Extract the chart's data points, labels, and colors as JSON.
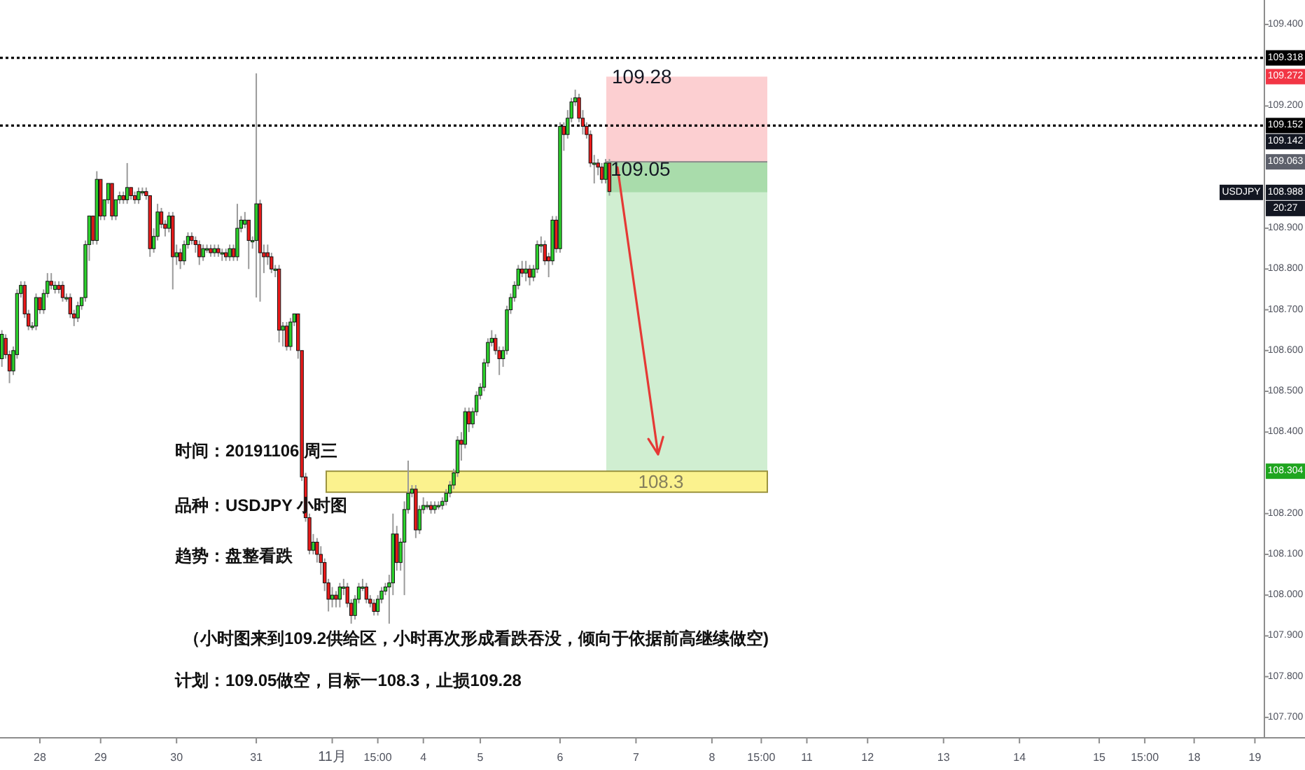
{
  "chart_data": {
    "type": "candlestick",
    "categories": [
      null,
      null,
      null,
      null,
      null,
      null,
      null,
      null,
      null,
      null,
      "28",
      null,
      null,
      null,
      null,
      null,
      null,
      null,
      null,
      null,
      null,
      null,
      null,
      null,
      null,
      null,
      "29",
      null,
      null,
      null,
      null,
      null,
      null,
      null,
      null,
      null,
      null,
      null,
      null,
      null,
      null,
      null,
      null,
      null,
      null,
      null,
      "30",
      null,
      null,
      null,
      null,
      null,
      null,
      null,
      null,
      null,
      null,
      null,
      null,
      null,
      null,
      null,
      null,
      null,
      null,
      null,
      null,
      "31",
      null,
      null,
      null,
      null,
      null,
      null,
      null,
      null,
      null,
      null,
      null,
      null,
      null,
      null,
      null,
      null,
      null,
      null,
      null,
      "11月",
      null,
      null,
      null,
      null,
      null,
      null,
      null,
      null,
      null,
      null,
      null,
      "15:00",
      null,
      null,
      null,
      null,
      null,
      null,
      null,
      null,
      null,
      null,
      null,
      "4",
      null,
      null,
      null,
      null,
      null,
      null,
      null,
      null,
      null,
      null,
      null,
      null,
      null,
      null,
      "5",
      null,
      null,
      null,
      null,
      null,
      null,
      null,
      null,
      null,
      null,
      null,
      null,
      null,
      null,
      null,
      null,
      null,
      null,
      null,
      null,
      "6",
      null,
      null,
      null,
      null,
      null,
      null,
      null,
      null,
      null,
      null,
      null,
      null,
      null,
      null,
      null,
      null,
      null,
      null,
      null,
      "7",
      null,
      null,
      null,
      null,
      null,
      null,
      null,
      null,
      null,
      null,
      null,
      null,
      null,
      null,
      null,
      null,
      null,
      null,
      null,
      "8",
      null,
      null,
      null,
      null,
      null,
      null,
      null,
      null,
      null,
      null,
      null,
      null,
      "15:00",
      null,
      null,
      null,
      null,
      null,
      null,
      null,
      null,
      null,
      null,
      null,
      "11",
      null,
      null,
      null,
      null,
      null,
      null,
      null,
      null,
      null,
      null,
      null,
      null,
      null,
      null,
      null,
      "12",
      null,
      null,
      null,
      null,
      null,
      null,
      null,
      null,
      null,
      null,
      null,
      null,
      null,
      null,
      null,
      null,
      null,
      null,
      null,
      "13",
      null,
      null,
      null,
      null,
      null,
      null,
      null,
      null,
      null,
      null,
      null,
      null,
      null,
      null,
      null,
      null,
      null,
      null,
      null,
      "14",
      null,
      null,
      null,
      null,
      null,
      null,
      null,
      null,
      null,
      null,
      null,
      null,
      null,
      null,
      null,
      null,
      null,
      null,
      null,
      null,
      "15",
      null,
      null,
      null,
      null,
      null,
      null,
      null,
      null,
      null,
      null,
      null,
      "15:00",
      null,
      null,
      null,
      null,
      null,
      null,
      null,
      null,
      null,
      null,
      null,
      null,
      "18",
      null,
      null,
      null,
      null,
      null,
      null,
      null,
      null,
      null,
      null,
      null,
      null,
      null,
      null,
      null,
      "19",
      null,
      null
    ],
    "ohlc": [
      [
        108.58,
        108.65,
        108.56,
        108.64
      ],
      [
        108.63,
        108.64,
        108.58,
        108.59
      ],
      [
        108.59,
        108.6,
        108.52,
        108.55
      ],
      [
        108.55,
        108.61,
        108.54,
        108.6
      ],
      [
        108.59,
        108.75,
        108.58,
        108.74
      ],
      [
        108.74,
        108.77,
        108.73,
        108.76
      ],
      [
        108.76,
        108.77,
        108.68,
        108.69
      ],
      [
        108.69,
        108.7,
        108.65,
        108.66
      ],
      [
        108.66,
        108.67,
        108.65,
        108.66
      ],
      [
        108.66,
        108.74,
        108.65,
        108.73
      ],
      [
        108.73,
        108.73,
        108.69,
        108.7
      ],
      [
        108.7,
        108.75,
        108.69,
        108.74
      ],
      [
        108.74,
        108.79,
        108.73,
        108.77
      ],
      [
        108.77,
        108.79,
        108.75,
        108.76
      ],
      [
        108.75,
        108.77,
        108.74,
        108.76
      ],
      [
        108.76,
        108.77,
        108.74,
        108.75
      ],
      [
        108.76,
        108.77,
        108.72,
        108.73
      ],
      [
        108.73,
        108.74,
        108.72,
        108.73
      ],
      [
        108.73,
        108.74,
        108.68,
        108.69
      ],
      [
        108.69,
        108.7,
        108.66,
        108.68
      ],
      [
        108.68,
        108.72,
        108.67,
        108.71
      ],
      [
        108.71,
        108.73,
        108.7,
        108.73
      ],
      [
        108.73,
        108.87,
        108.72,
        108.86
      ],
      [
        108.86,
        108.93,
        108.82,
        108.93
      ],
      [
        108.93,
        108.93,
        108.86,
        108.87
      ],
      [
        108.87,
        109.04,
        108.86,
        109.02
      ],
      [
        109.02,
        109.02,
        108.92,
        108.93
      ],
      [
        108.93,
        108.97,
        108.92,
        108.97
      ],
      [
        108.97,
        109.01,
        108.96,
        109.01
      ],
      [
        109.01,
        109.01,
        108.92,
        108.93
      ],
      [
        108.93,
        108.97,
        108.92,
        108.97
      ],
      [
        108.97,
        108.99,
        108.96,
        108.98
      ],
      [
        108.98,
        108.99,
        108.96,
        108.97
      ],
      [
        108.97,
        109.06,
        108.96,
        109.0
      ],
      [
        109.0,
        109.0,
        108.97,
        108.98
      ],
      [
        108.98,
        108.99,
        108.96,
        108.97
      ],
      [
        108.97,
        109.0,
        108.96,
        108.99
      ],
      [
        108.99,
        109.0,
        108.98,
        108.99
      ],
      [
        108.99,
        109.0,
        108.97,
        108.98
      ],
      [
        108.98,
        108.98,
        108.83,
        108.85
      ],
      [
        108.85,
        108.9,
        108.84,
        108.88
      ],
      [
        108.88,
        108.96,
        108.87,
        108.94
      ],
      [
        108.94,
        108.95,
        108.9,
        108.91
      ],
      [
        108.91,
        108.92,
        108.88,
        108.9
      ],
      [
        108.9,
        108.94,
        108.89,
        108.93
      ],
      [
        108.93,
        108.94,
        108.75,
        108.83
      ],
      [
        108.83,
        108.86,
        108.81,
        108.84
      ],
      [
        108.84,
        108.85,
        108.8,
        108.82
      ],
      [
        108.82,
        108.87,
        108.81,
        108.86
      ],
      [
        108.86,
        108.89,
        108.85,
        108.88
      ],
      [
        108.88,
        108.89,
        108.86,
        108.87
      ],
      [
        108.87,
        108.88,
        108.84,
        108.86
      ],
      [
        108.86,
        108.87,
        108.81,
        108.83
      ],
      [
        108.83,
        108.86,
        108.82,
        108.85
      ],
      [
        108.85,
        108.86,
        108.84,
        108.85
      ],
      [
        108.85,
        108.86,
        108.83,
        108.84
      ],
      [
        108.84,
        108.86,
        108.83,
        108.85
      ],
      [
        108.85,
        108.86,
        108.83,
        108.84
      ],
      [
        108.84,
        108.85,
        108.82,
        108.84
      ],
      [
        108.84,
        108.85,
        108.82,
        108.83
      ],
      [
        108.83,
        108.86,
        108.82,
        108.85
      ],
      [
        108.85,
        108.86,
        108.82,
        108.83
      ],
      [
        108.83,
        108.96,
        108.82,
        108.9
      ],
      [
        108.9,
        108.93,
        108.89,
        108.92
      ],
      [
        108.91,
        108.94,
        108.9,
        108.92
      ],
      [
        108.92,
        108.92,
        108.8,
        108.87
      ],
      [
        108.87,
        108.88,
        108.85,
        108.87
      ],
      [
        108.87,
        109.28,
        108.73,
        108.96
      ],
      [
        108.96,
        108.97,
        108.72,
        108.84
      ],
      [
        108.84,
        108.86,
        108.79,
        108.83
      ],
      [
        108.84,
        108.86,
        108.81,
        108.83
      ],
      [
        108.83,
        108.84,
        108.79,
        108.8
      ],
      [
        108.8,
        108.81,
        108.78,
        108.8
      ],
      [
        108.8,
        108.81,
        108.62,
        108.65
      ],
      [
        108.65,
        108.67,
        108.61,
        108.66
      ],
      [
        108.66,
        108.67,
        108.6,
        108.61
      ],
      [
        108.61,
        108.68,
        108.6,
        108.67
      ],
      [
        108.67,
        108.69,
        108.66,
        108.69
      ],
      [
        108.69,
        108.69,
        108.58,
        108.6
      ],
      [
        108.6,
        108.6,
        108.28,
        108.29
      ],
      [
        108.29,
        108.3,
        108.18,
        108.19
      ],
      [
        108.19,
        108.2,
        108.1,
        108.11
      ],
      [
        108.11,
        108.15,
        108.1,
        108.13
      ],
      [
        108.13,
        108.14,
        108.08,
        108.1
      ],
      [
        108.1,
        108.12,
        108.05,
        108.08
      ],
      [
        108.08,
        108.09,
        108.01,
        108.03
      ],
      [
        108.03,
        108.04,
        107.96,
        107.99
      ],
      [
        107.99,
        108.02,
        107.97,
        108.0
      ],
      [
        108.0,
        108.01,
        107.97,
        107.99
      ],
      [
        107.99,
        108.03,
        107.97,
        108.02
      ],
      [
        108.02,
        108.04,
        108.0,
        108.02
      ],
      [
        108.02,
        108.03,
        107.97,
        107.98
      ],
      [
        107.98,
        107.99,
        107.93,
        107.95
      ],
      [
        107.95,
        108.0,
        107.94,
        107.99
      ],
      [
        107.99,
        108.03,
        107.98,
        108.02
      ],
      [
        108.02,
        108.04,
        108.01,
        108.02
      ],
      [
        108.02,
        108.03,
        107.98,
        107.99
      ],
      [
        107.99,
        108.0,
        107.97,
        107.98
      ],
      [
        107.98,
        107.99,
        107.95,
        107.96
      ],
      [
        107.96,
        108.0,
        107.95,
        107.99
      ],
      [
        107.99,
        108.02,
        107.98,
        108.01
      ],
      [
        108.01,
        108.03,
        108.0,
        108.02
      ],
      [
        108.02,
        108.05,
        107.93,
        108.03
      ],
      [
        108.03,
        108.2,
        108.0,
        108.15
      ],
      [
        108.15,
        108.17,
        108.06,
        108.08
      ],
      [
        108.08,
        108.14,
        108.06,
        108.13
      ],
      [
        108.13,
        108.23,
        108.0,
        108.21
      ],
      [
        108.21,
        108.33,
        108.2,
        108.25
      ],
      [
        108.25,
        108.27,
        108.24,
        108.26
      ],
      [
        108.26,
        108.27,
        108.14,
        108.16
      ],
      [
        108.16,
        108.22,
        108.15,
        108.21
      ],
      [
        108.21,
        108.24,
        108.2,
        108.22
      ],
      [
        108.22,
        108.23,
        108.21,
        108.22
      ],
      [
        108.22,
        108.23,
        108.2,
        108.21
      ],
      [
        108.21,
        108.23,
        108.2,
        108.22
      ],
      [
        108.22,
        108.23,
        108.21,
        108.22
      ],
      [
        108.22,
        108.24,
        108.21,
        108.23
      ],
      [
        108.23,
        108.26,
        108.22,
        108.25
      ],
      [
        108.25,
        108.28,
        108.24,
        108.27
      ],
      [
        108.27,
        108.31,
        108.26,
        108.3
      ],
      [
        108.3,
        108.39,
        108.29,
        108.38
      ],
      [
        108.38,
        108.4,
        108.33,
        108.37
      ],
      [
        108.37,
        108.46,
        108.36,
        108.45
      ],
      [
        108.45,
        108.46,
        108.4,
        108.42
      ],
      [
        108.42,
        108.46,
        108.41,
        108.45
      ],
      [
        108.45,
        108.5,
        108.44,
        108.49
      ],
      [
        108.49,
        108.52,
        108.48,
        108.51
      ],
      [
        108.51,
        108.58,
        108.5,
        108.57
      ],
      [
        108.57,
        108.63,
        108.56,
        108.62
      ],
      [
        108.62,
        108.65,
        108.61,
        108.63
      ],
      [
        108.63,
        108.64,
        108.59,
        108.6
      ],
      [
        108.6,
        108.61,
        108.54,
        108.58
      ],
      [
        108.58,
        108.61,
        108.56,
        108.6
      ],
      [
        108.6,
        108.71,
        108.59,
        108.7
      ],
      [
        108.7,
        108.74,
        108.69,
        108.73
      ],
      [
        108.73,
        108.77,
        108.72,
        108.76
      ],
      [
        108.76,
        108.81,
        108.75,
        108.8
      ],
      [
        108.8,
        108.82,
        108.78,
        108.79
      ],
      [
        108.79,
        108.82,
        108.77,
        108.8
      ],
      [
        108.8,
        108.81,
        108.76,
        108.78
      ],
      [
        108.78,
        108.81,
        108.77,
        108.8
      ],
      [
        108.8,
        108.87,
        108.79,
        108.86
      ],
      [
        108.86,
        108.88,
        108.84,
        108.86
      ],
      [
        108.86,
        108.87,
        108.81,
        108.82
      ],
      [
        108.83,
        108.84,
        108.78,
        108.82
      ],
      [
        108.82,
        108.93,
        108.81,
        108.92
      ],
      [
        108.92,
        108.93,
        108.84,
        108.85
      ],
      [
        108.85,
        109.16,
        108.84,
        109.15
      ],
      [
        109.15,
        109.16,
        109.09,
        109.13
      ],
      [
        109.13,
        109.19,
        109.12,
        109.17
      ],
      [
        109.17,
        109.22,
        109.16,
        109.21
      ],
      [
        109.21,
        109.24,
        109.2,
        109.22
      ],
      [
        109.22,
        109.23,
        109.16,
        109.17
      ],
      [
        109.17,
        109.19,
        109.13,
        109.15
      ],
      [
        109.15,
        109.16,
        109.12,
        109.13
      ],
      [
        109.13,
        109.14,
        109.05,
        109.06
      ],
      [
        109.06,
        109.08,
        109.01,
        109.06
      ],
      [
        109.06,
        109.07,
        109.03,
        109.05
      ],
      [
        109.05,
        109.06,
        109.01,
        109.02
      ],
      [
        109.02,
        109.07,
        109.01,
        109.06
      ],
      [
        109.06,
        109.07,
        108.98,
        108.99
      ],
      null,
      null,
      null,
      null,
      null,
      null,
      null,
      null,
      null,
      null,
      null,
      null,
      null,
      null,
      null,
      null,
      null,
      null,
      null,
      null,
      null,
      null,
      null,
      null,
      null,
      null,
      null,
      null,
      null,
      null,
      null,
      null,
      null,
      null,
      null,
      null,
      null,
      null,
      null,
      null,
      null,
      null,
      null,
      null,
      null,
      null,
      null,
      null,
      null,
      null,
      null,
      null,
      null,
      null,
      null,
      null,
      null,
      null,
      null,
      null,
      null,
      null,
      null,
      null,
      null,
      null,
      null,
      null,
      null,
      null,
      null,
      null,
      null,
      null,
      null,
      null,
      null,
      null,
      null,
      null,
      null,
      null,
      null,
      null,
      null,
      null,
      null,
      null,
      null,
      null,
      null,
      null,
      null,
      null,
      null,
      null,
      null,
      null,
      null,
      null,
      null,
      null,
      null,
      null,
      null,
      null,
      null,
      null,
      null,
      null,
      null,
      null,
      null,
      null,
      null,
      null,
      null,
      null,
      null,
      null,
      null,
      null,
      null,
      null,
      null,
      null,
      null,
      null,
      null,
      null,
      null,
      null,
      null,
      null,
      null,
      null,
      null,
      null,
      null,
      null,
      null,
      null,
      null,
      null,
      null,
      null,
      null,
      null,
      null,
      null,
      null,
      null,
      null,
      null,
      null,
      null,
      null,
      null,
      null,
      null,
      null,
      null,
      null,
      null,
      null,
      null,
      null,
      null,
      null,
      null,
      null,
      null
    ],
    "ylim": [
      107.65,
      109.46
    ],
    "yticks": [
      {
        "value": 109.4,
        "label": "109.400"
      },
      {
        "value": 109.272,
        "label": "109.272"
      },
      {
        "value": 109.2,
        "label": "109.200"
      },
      {
        "value": 109.063,
        "label": "109.063"
      },
      {
        "value": 108.988,
        "label": "108.988"
      },
      {
        "value": 108.9,
        "label": "108.900"
      },
      {
        "value": 108.8,
        "label": "108.800"
      },
      {
        "value": 108.7,
        "label": "108.700"
      },
      {
        "value": 108.6,
        "label": "108.600"
      },
      {
        "value": 108.5,
        "label": "108.500"
      },
      {
        "value": 108.4,
        "label": "108.400"
      },
      {
        "value": 108.304,
        "label": "108.304"
      },
      {
        "value": 108.2,
        "label": "108.200"
      },
      {
        "value": 108.1,
        "label": "108.100"
      },
      {
        "value": 108.0,
        "label": "108.000"
      },
      {
        "value": 107.9,
        "label": "107.900"
      },
      {
        "value": 107.8,
        "label": "107.800"
      },
      {
        "value": 107.7,
        "label": "107.700"
      }
    ],
    "ref_lines": [
      {
        "axis": "y",
        "value": 109.318,
        "label": "109.318",
        "color": "#000000",
        "line_style": "dotted"
      },
      {
        "axis": "y",
        "value": 109.152,
        "label": "109.152",
        "color": "#000000",
        "line_style": "dotted"
      }
    ],
    "annotations": [
      "109.28",
      "109.05",
      "108.3",
      "时间：20191106 周三",
      "品种：USDJPY 小时图",
      "趋势：盘整看跌",
      "（小时图来到109.2供给区，小时再次形成看跌吞没，倾向于依据前高继续做空)",
      "计划：109.05做空，目标一108.3，止损109.28",
      "USDJPY",
      "20:27",
      "109.142"
    ]
  }
}
